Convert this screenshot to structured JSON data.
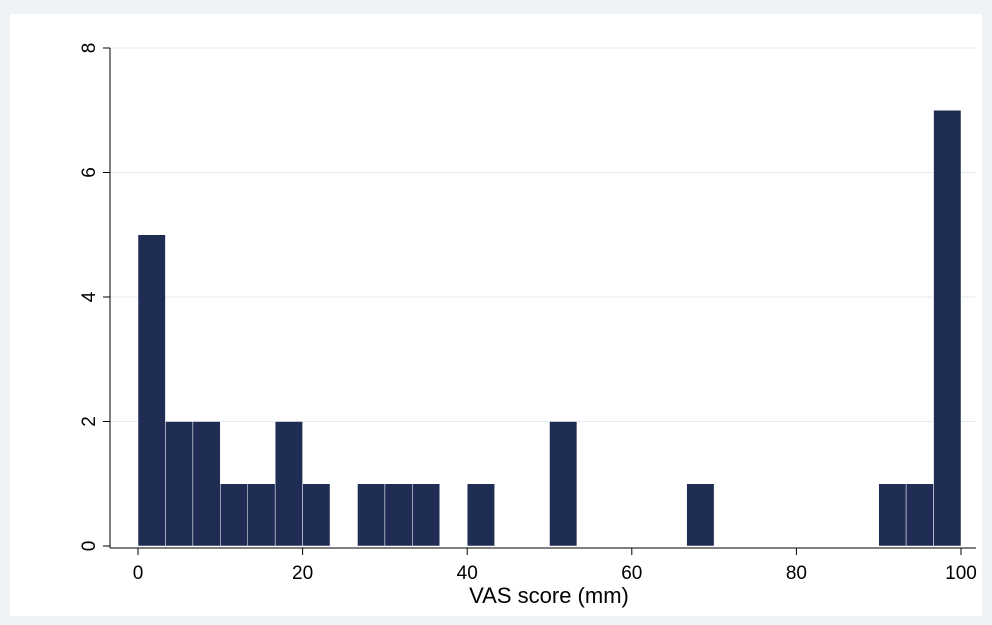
{
  "chart_data": {
    "type": "bar",
    "subtype": "histogram",
    "title": "",
    "xlabel": "VAS score (mm)",
    "ylabel": "",
    "xlim": [
      0,
      100
    ],
    "ylim": [
      0,
      8
    ],
    "xticks": [
      0,
      20,
      40,
      60,
      80,
      100
    ],
    "yticks": [
      0,
      2,
      4,
      6,
      8
    ],
    "grid": true,
    "legend": "none",
    "bar_color": "#1f2d55",
    "bin_width": 3.3333,
    "bins": [
      {
        "start": 0,
        "end": 3.3333,
        "count": 5
      },
      {
        "start": 3.3333,
        "end": 6.6667,
        "count": 2
      },
      {
        "start": 6.6667,
        "end": 10,
        "count": 2
      },
      {
        "start": 10,
        "end": 13.3333,
        "count": 1
      },
      {
        "start": 13.3333,
        "end": 16.6667,
        "count": 1
      },
      {
        "start": 16.6667,
        "end": 20,
        "count": 2
      },
      {
        "start": 20,
        "end": 23.3333,
        "count": 1
      },
      {
        "start": 23.3333,
        "end": 26.6667,
        "count": 0
      },
      {
        "start": 26.6667,
        "end": 30,
        "count": 1
      },
      {
        "start": 30,
        "end": 33.3333,
        "count": 1
      },
      {
        "start": 33.3333,
        "end": 36.6667,
        "count": 1
      },
      {
        "start": 36.6667,
        "end": 40,
        "count": 0
      },
      {
        "start": 40,
        "end": 43.3333,
        "count": 1
      },
      {
        "start": 43.3333,
        "end": 46.6667,
        "count": 0
      },
      {
        "start": 46.6667,
        "end": 50,
        "count": 0
      },
      {
        "start": 50,
        "end": 53.3333,
        "count": 2
      },
      {
        "start": 53.3333,
        "end": 56.6667,
        "count": 0
      },
      {
        "start": 56.6667,
        "end": 60,
        "count": 0
      },
      {
        "start": 60,
        "end": 63.3333,
        "count": 0
      },
      {
        "start": 63.3333,
        "end": 66.6667,
        "count": 0
      },
      {
        "start": 66.6667,
        "end": 70,
        "count": 1
      },
      {
        "start": 70,
        "end": 73.3333,
        "count": 0
      },
      {
        "start": 73.3333,
        "end": 76.6667,
        "count": 0
      },
      {
        "start": 76.6667,
        "end": 80,
        "count": 0
      },
      {
        "start": 80,
        "end": 83.3333,
        "count": 0
      },
      {
        "start": 83.3333,
        "end": 86.6667,
        "count": 0
      },
      {
        "start": 86.6667,
        "end": 90,
        "count": 0
      },
      {
        "start": 90,
        "end": 93.3333,
        "count": 1
      },
      {
        "start": 93.3333,
        "end": 96.6667,
        "count": 1
      },
      {
        "start": 96.6667,
        "end": 100,
        "count": 7
      }
    ]
  }
}
